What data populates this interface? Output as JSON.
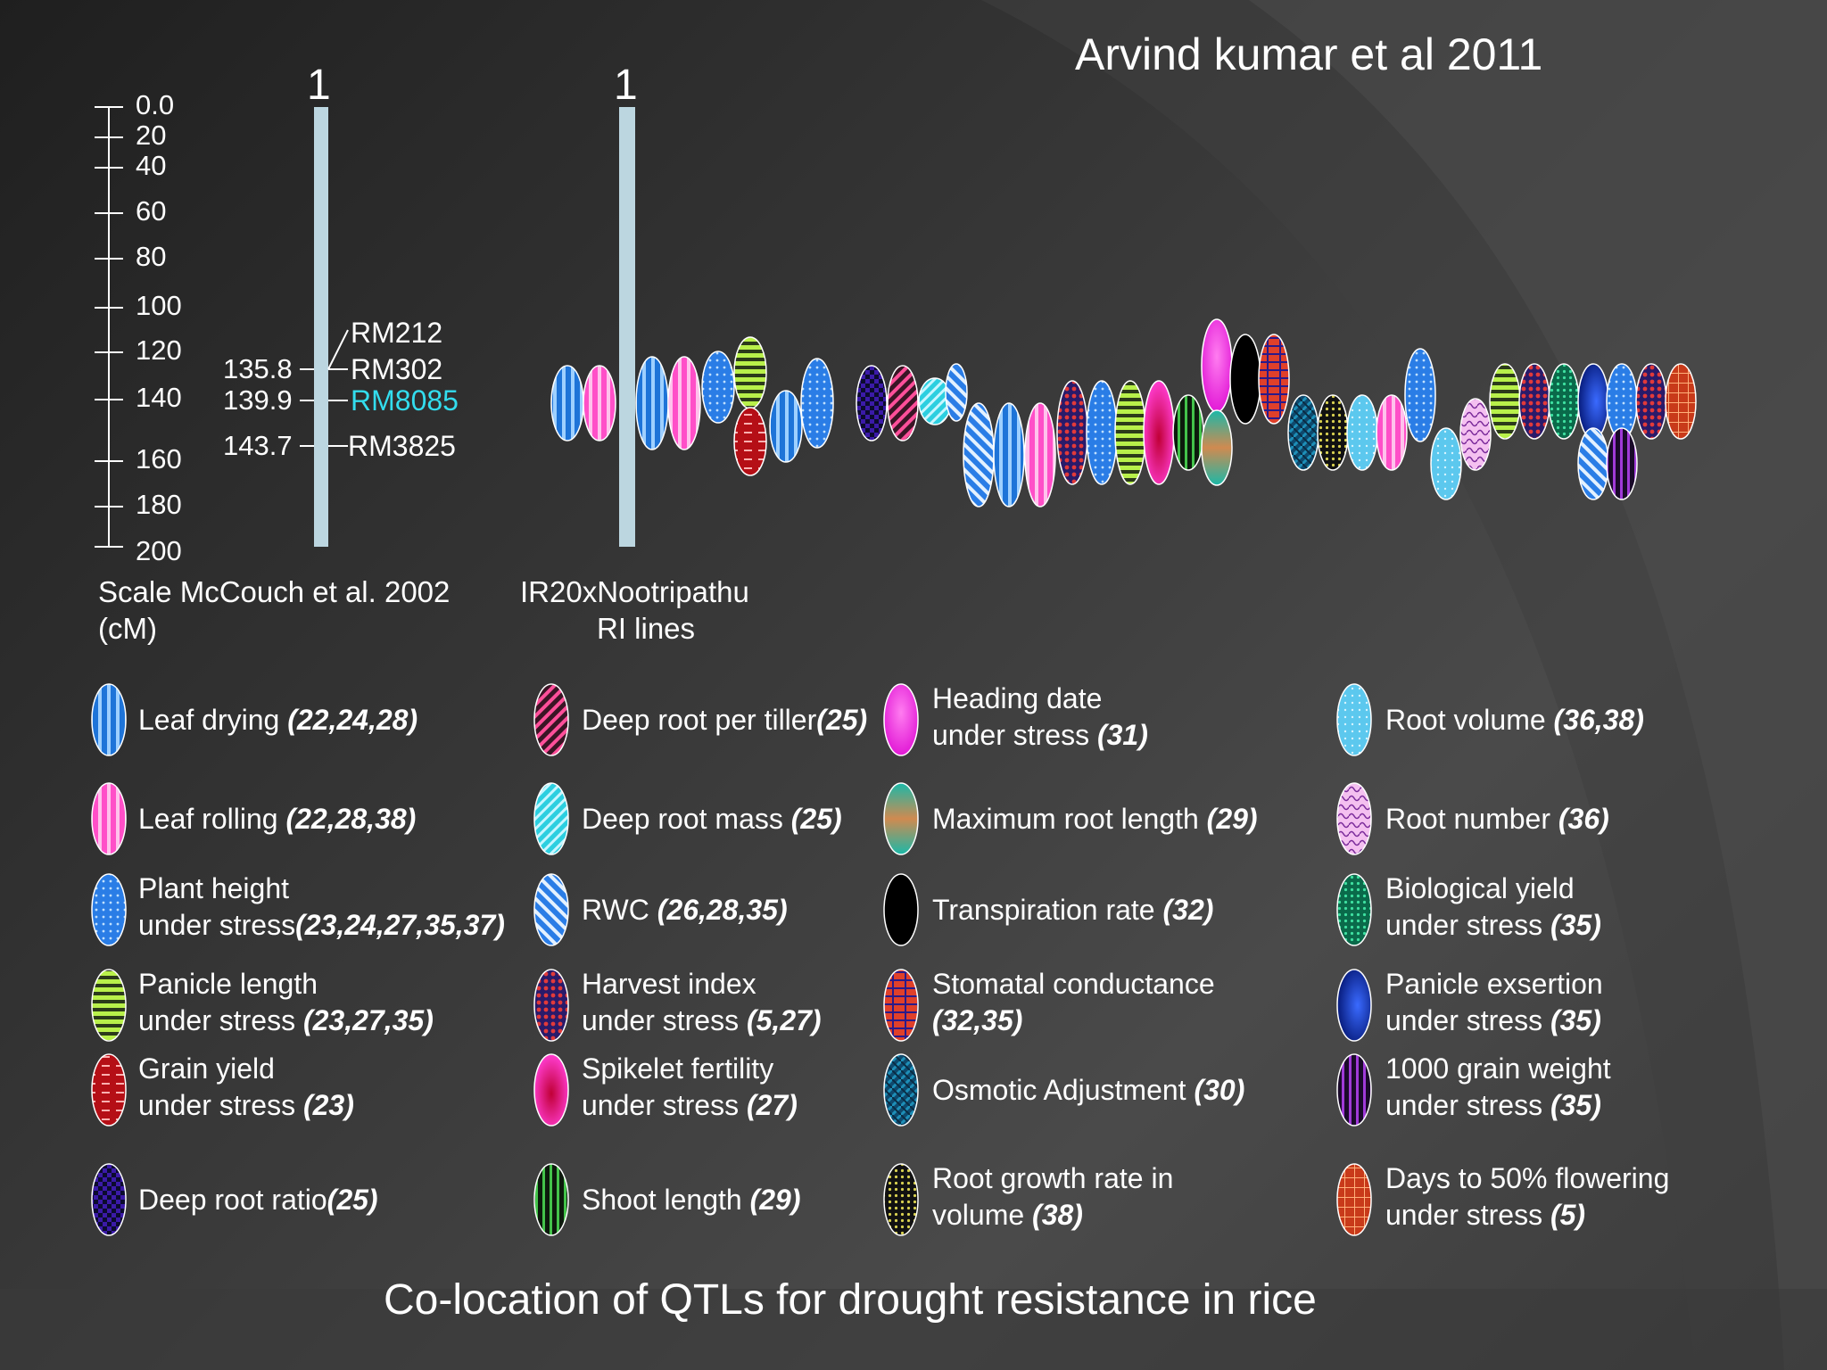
{
  "author": "Arvind kumar et al 2011",
  "caption": "Co-location of QTLs for drought resistance in rice",
  "scale": {
    "ticks": [
      "0.0",
      "20",
      "40",
      "60",
      "80",
      "100",
      "120",
      "140",
      "160",
      "180",
      "200"
    ],
    "label_line1": "Scale McCouch et  al. 2002",
    "label_line2": "(cM)"
  },
  "chromosome_number": "1",
  "map2_number": "1",
  "map2_label_line1": "IR20xNootripathu",
  "map2_label_line2": "RI lines",
  "markers": [
    {
      "pos": "",
      "name": "RM212",
      "color": "#ffffff"
    },
    {
      "pos": "135.8",
      "name": "RM302",
      "color": "#ffffff"
    },
    {
      "pos": "139.9",
      "name": "RM8085",
      "color": "#33ddee"
    },
    {
      "pos": "143.7",
      "name": "RM3825",
      "color": "#ffffff"
    }
  ],
  "legend": [
    {
      "l1": "Leaf drying ",
      "n1": "(22,24,28)",
      "l2": "",
      "n2": "",
      "icon": "leaf-drying-stripes-icon"
    },
    {
      "l1": "Leaf rolling ",
      "n1": "(22,28,38)",
      "l2": "",
      "n2": "",
      "icon": "leaf-rolling-stripes-icon"
    },
    {
      "l1": "Plant height",
      "n1": "",
      "l2": "under stress",
      "n2": "(23,24,27,35,37)",
      "icon": "dotted-blue-icon"
    },
    {
      "l1": "Panicle length",
      "n1": "",
      "l2": "under stress ",
      "n2": "(23,27,35)",
      "icon": "lime-stripes-icon"
    },
    {
      "l1": "Grain yield",
      "n1": "",
      "l2": "under stress ",
      "n2": "(23)",
      "icon": "brick-red-icon"
    },
    {
      "l1": "Deep root  ratio",
      "n1": "(25)",
      "l2": "",
      "n2": "",
      "icon": "checker-purple-icon"
    },
    {
      "l1": "Deep root per tiller",
      "n1": "(25)",
      "l2": "",
      "n2": "",
      "icon": "diagonal-pink-icon"
    },
    {
      "l1": "Deep root mass ",
      "n1": "(25)",
      "l2": "",
      "n2": "",
      "icon": "diagonal-cyan-icon"
    },
    {
      "l1": "RWC ",
      "n1": "(26,28,35)",
      "l2": "",
      "n2": "",
      "icon": "diagonal-blue-icon"
    },
    {
      "l1": "Harvest index",
      "n1": "",
      "l2": "under stress ",
      "n2": "(5,27)",
      "icon": "dots-red-icon"
    },
    {
      "l1": "Spikelet fertility",
      "n1": "",
      "l2": "under stress ",
      "n2": "(27)",
      "icon": "gradient-magenta-icon"
    },
    {
      "l1": "Shoot length ",
      "n1": "(29)",
      "l2": "",
      "n2": "",
      "icon": "green-stripes-icon"
    },
    {
      "l1": "Heading date",
      "n1": "",
      "l2": "under stress ",
      "n2": "(31)",
      "icon": "solid-magenta-icon"
    },
    {
      "l1": "Maximum root length ",
      "n1": "(29)",
      "l2": "",
      "n2": "",
      "icon": "teal-orange-icon"
    },
    {
      "l1": "Transpiration rate ",
      "n1": "(32)",
      "l2": "",
      "n2": "",
      "icon": "solid-black-icon"
    },
    {
      "l1": "Stomatal conductance",
      "n1": "",
      "l2": "",
      "n2": "(32,35)",
      "icon": "brick-purple-icon"
    },
    {
      "l1": "Osmotic Adjustment  ",
      "n1": "(30)",
      "l2": "",
      "n2": "",
      "icon": "weave-teal-icon"
    },
    {
      "l1": "Root growth rate in",
      "n1": "",
      "l2": "volume ",
      "n2": "(38)",
      "icon": "dots-yellow-icon"
    },
    {
      "l1": "Root volume ",
      "n1": "(36,38)",
      "l2": "",
      "n2": "",
      "icon": "dots-lightblue-icon"
    },
    {
      "l1": "Root number ",
      "n1": "(36)",
      "l2": "",
      "n2": "",
      "icon": "wave-pink-icon"
    },
    {
      "l1": "Biological yield",
      "n1": "",
      "l2": " under stress ",
      "n2": "(35)",
      "icon": "dots-green-icon"
    },
    {
      "l1": "Panicle exsertion",
      "n1": "",
      "l2": "under stress ",
      "n2": "(35)",
      "icon": "gradient-navy-icon"
    },
    {
      "l1": "1000 grain weight",
      "n1": "",
      "l2": "under stress ",
      "n2": "(35)",
      "icon": "purple-stripes-icon"
    },
    {
      "l1": "Days to 50% flowering",
      "n1": "",
      "l2": "under stress ",
      "n2": "(5)",
      "icon": "grid-orange-icon"
    }
  ],
  "colors": {
    "chromosome": "#bcd6e0",
    "highlight_marker": "#33ddee"
  }
}
